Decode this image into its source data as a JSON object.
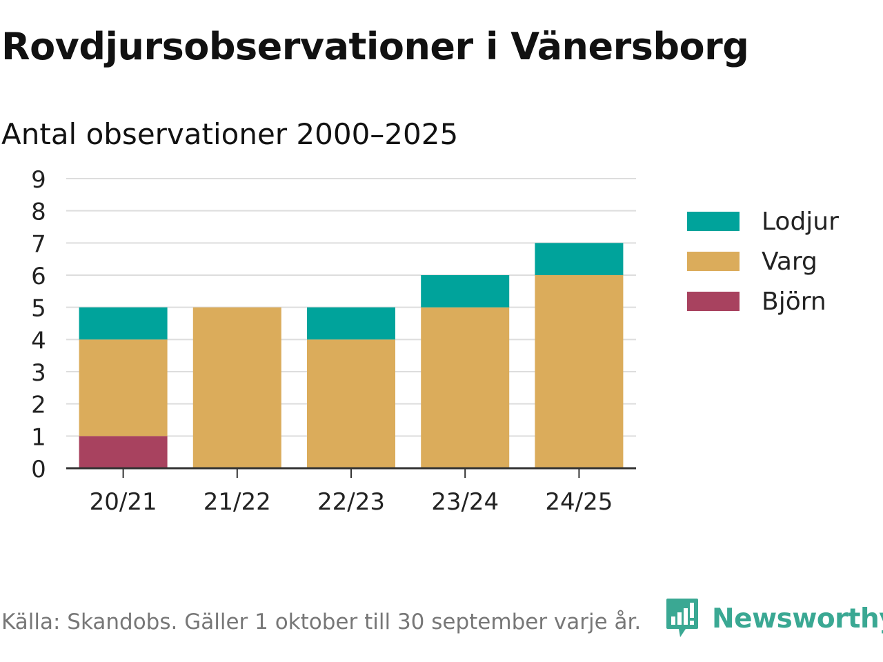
{
  "header": {
    "title": "Rovdjursobservationer i Vänersborg",
    "subtitle": "Antal observationer 2000–2025"
  },
  "footer": {
    "source": "Källa: Skandobs. Gäller 1 oktober till 30 september varje år.",
    "brand": "Newsworthy"
  },
  "colors": {
    "lodjur": "#00a39b",
    "varg": "#dbac5b",
    "bjorn": "#a8425f",
    "grid": "#dddddd",
    "axis": "#333333",
    "brand": "#3aa893"
  },
  "chart_data": {
    "type": "bar",
    "stacked": true,
    "categories": [
      "20/21",
      "21/22",
      "22/23",
      "23/24",
      "24/25"
    ],
    "series": [
      {
        "name": "Björn",
        "color": "#a8425f",
        "values": [
          1,
          0,
          0,
          0,
          0
        ]
      },
      {
        "name": "Varg",
        "color": "#dbac5b",
        "values": [
          3,
          5,
          4,
          5,
          6
        ]
      },
      {
        "name": "Lodjur",
        "color": "#00a39b",
        "values": [
          1,
          0,
          1,
          1,
          1
        ]
      }
    ],
    "legend_order": [
      "Lodjur",
      "Varg",
      "Björn"
    ],
    "title": "Rovdjursobservationer i Vänersborg",
    "subtitle": "Antal observationer 2000–2025",
    "xlabel": "",
    "ylabel": "",
    "ylim": [
      0,
      9
    ],
    "yticks": [
      "0",
      "1",
      "2",
      "3",
      "4",
      "5",
      "6",
      "7",
      "8",
      "9"
    ],
    "grid": true,
    "legend_position": "right"
  }
}
